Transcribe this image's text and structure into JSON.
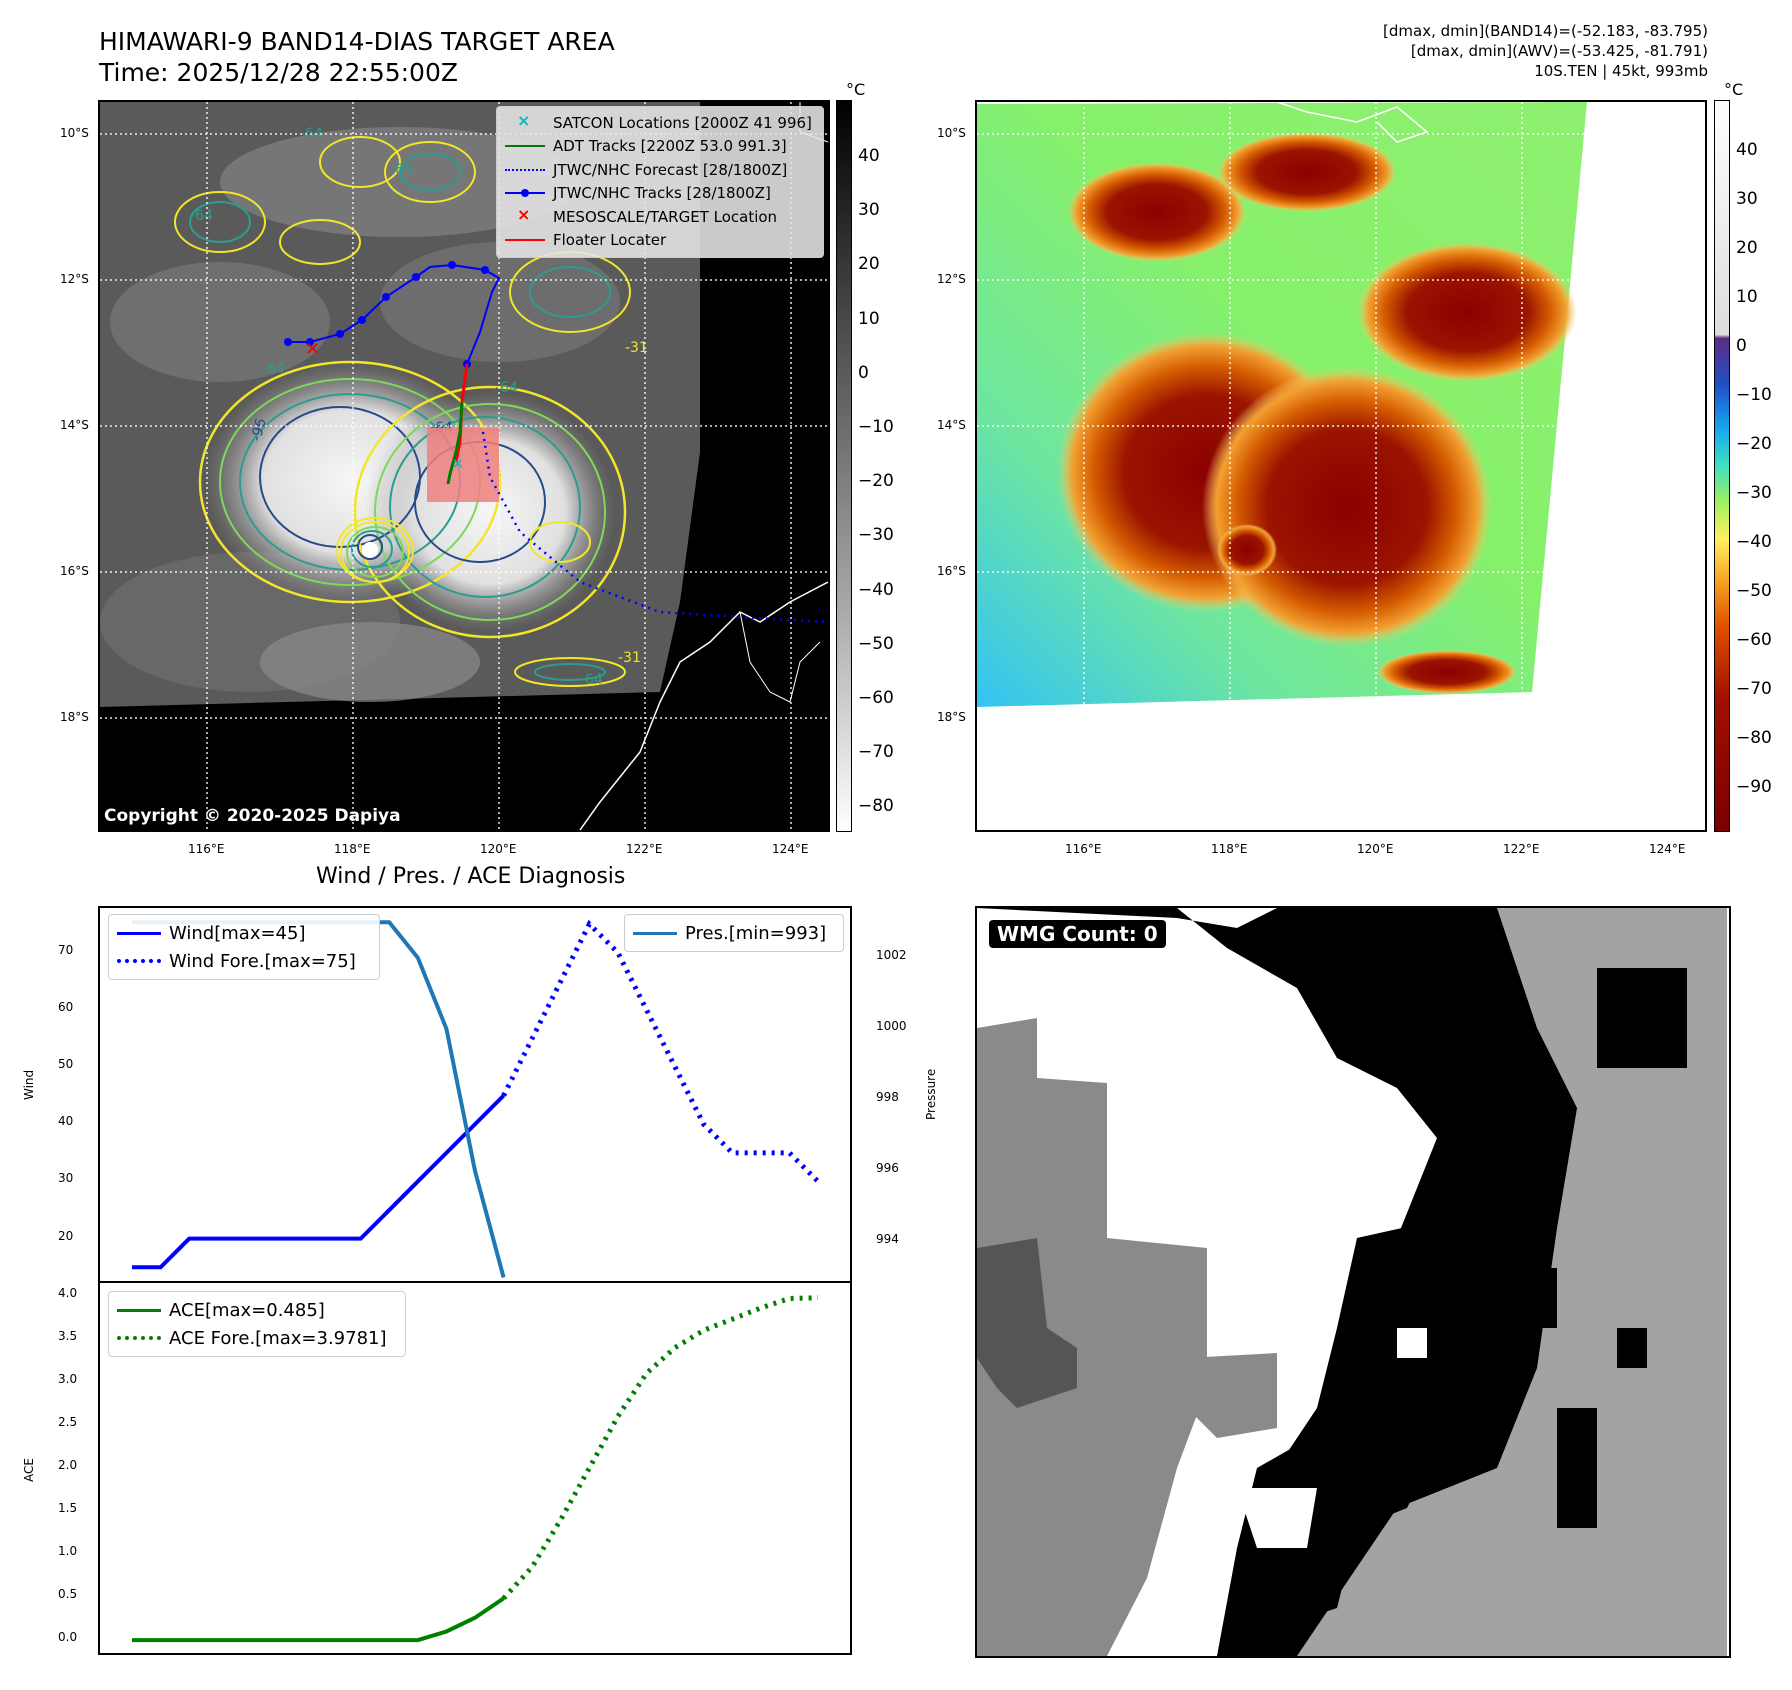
{
  "header": {
    "title_line1": "HIMAWARI-9 BAND14-DIAS TARGET AREA",
    "title_line2": "Time: 2025/12/28 22:55:00Z",
    "right_line1": "[dmax, dmin](BAND14)=(-52.183, -83.795)",
    "right_line2": "[dmax, dmin](AWV)=(-53.425, -81.791)",
    "right_line3": "10S.TEN | 45kt, 993mb"
  },
  "map": {
    "lat_labels": [
      "10°S",
      "12°S",
      "14°S",
      "16°S",
      "18°S"
    ],
    "lon_labels": [
      "116°E",
      "118°E",
      "120°E",
      "122°E",
      "124°E"
    ],
    "copyright": "Copyright © 2020-2025 Dapiya",
    "contour_labels": [
      "-64",
      "-64",
      "-64",
      "-64",
      "-96",
      "-64",
      "-64",
      "-31",
      "-31",
      "-64"
    ],
    "colorbar_unit": "°C",
    "colorbar1_ticks": [
      "40",
      "30",
      "20",
      "10",
      "0",
      "−10",
      "−20",
      "−30",
      "−40",
      "−50",
      "−60",
      "−70",
      "−80"
    ],
    "colorbar2_ticks": [
      "40",
      "30",
      "20",
      "10",
      "0",
      "−10",
      "−20",
      "−30",
      "−40",
      "−50",
      "−60",
      "−70",
      "−80",
      "−90"
    ],
    "legend": [
      {
        "label": "SATCON Locations [2000Z 41 996]",
        "color": "#17b6b6",
        "marker": "x"
      },
      {
        "label": "ADT Tracks [2200Z 53.0 991.3]",
        "color": "#007a00",
        "marker": "line"
      },
      {
        "label": "JTWC/NHC Forecast [28/1800Z]",
        "color": "#0000ff",
        "marker": "dots"
      },
      {
        "label": "JTWC/NHC Tracks [28/1800Z]",
        "color": "#0000ff",
        "marker": "line-dot"
      },
      {
        "label": "MESOSCALE/TARGET Location",
        "color": "#ff0000",
        "marker": "x"
      },
      {
        "label": "Floater Locater",
        "color": "#ff0000",
        "marker": "line"
      }
    ]
  },
  "chart_data": [
    {
      "type": "line",
      "title": "Wind / Pres. / ACE Diagnosis",
      "ylabel": "Wind",
      "ylabel_right": "Pressure",
      "x": [
        0,
        1,
        2,
        3,
        4,
        5,
        6,
        7,
        8,
        9,
        10,
        11,
        12,
        13,
        14,
        15,
        16,
        17,
        18,
        19,
        20,
        21,
        22,
        23,
        24
      ],
      "ylim": [
        12.6,
        77.8
      ],
      "ylim_right": [
        992.9,
        1003.4
      ],
      "yticks": [
        20,
        30,
        40,
        50,
        60,
        70
      ],
      "yticks_right": [
        994,
        996,
        998,
        1000,
        1002
      ],
      "series": [
        {
          "name": "Wind[max=45]",
          "color": "#0000ff",
          "style": "solid",
          "x": [
            0,
            1,
            2,
            3,
            4,
            5,
            6,
            7,
            8,
            9,
            10,
            11,
            12,
            13
          ],
          "values": [
            15,
            15,
            20,
            20,
            20,
            20,
            20,
            20,
            20,
            25,
            30,
            35,
            40,
            45
          ]
        },
        {
          "name": "Wind Fore.[max=75]",
          "color": "#0000ff",
          "style": "dotted",
          "x": [
            13,
            14,
            15,
            16,
            17,
            18,
            19,
            20,
            21,
            22,
            23,
            24
          ],
          "values": [
            45,
            55,
            65,
            75,
            70,
            60,
            50,
            40,
            35,
            35,
            35,
            30
          ]
        },
        {
          "name": "Pres.[min=993]",
          "color": "#1f77b4",
          "style": "solid",
          "axis": "right",
          "x": [
            0,
            1,
            2,
            3,
            4,
            5,
            6,
            7,
            8,
            9,
            10,
            11,
            12,
            13
          ],
          "values": [
            1003,
            1003,
            1003,
            1003,
            1003,
            1003,
            1003,
            1003,
            1003,
            1003,
            1002,
            1000,
            996,
            993
          ]
        }
      ]
    },
    {
      "type": "line",
      "ylabel": "ACE",
      "x": [
        0,
        1,
        2,
        3,
        4,
        5,
        6,
        7,
        8,
        9,
        10,
        11,
        12,
        13,
        14,
        15,
        16,
        17,
        18,
        19,
        20,
        21,
        22,
        23,
        24
      ],
      "ylim": [
        -0.15,
        4.15
      ],
      "yticks": [
        "0.0",
        "0.5",
        "1.0",
        "1.5",
        "2.0",
        "2.5",
        "3.0",
        "3.5",
        "4.0"
      ],
      "series": [
        {
          "name": "ACE[max=0.485]",
          "color": "#008000",
          "style": "solid",
          "x": [
            0,
            1,
            2,
            3,
            4,
            5,
            6,
            7,
            8,
            9,
            10,
            11,
            12,
            13
          ],
          "values": [
            0,
            0,
            0,
            0,
            0,
            0,
            0,
            0,
            0,
            0,
            0,
            0.1,
            0.26,
            0.485
          ]
        },
        {
          "name": "ACE Fore.[max=3.9781]",
          "color": "#008000",
          "style": "dotted",
          "x": [
            13,
            14,
            15,
            16,
            17,
            18,
            19,
            20,
            21,
            22,
            23,
            24
          ],
          "values": [
            0.485,
            0.85,
            1.4,
            2.0,
            2.6,
            3.1,
            3.4,
            3.6,
            3.73,
            3.86,
            3.97,
            3.978
          ]
        }
      ]
    }
  ],
  "wmg": {
    "label": "WMG Count: 0"
  }
}
